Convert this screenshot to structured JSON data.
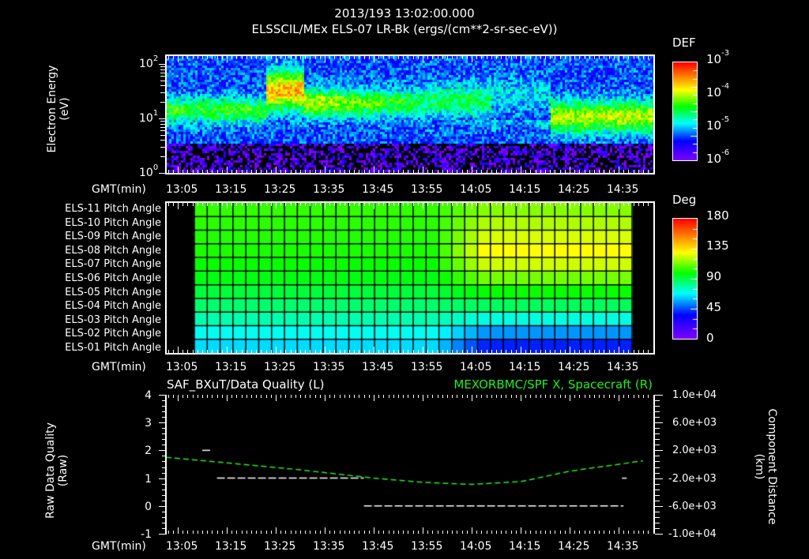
{
  "header": {
    "timestamp": "2013/193 13:02:00.000",
    "subtitle": "ELSSCIL/MEx ELS-07 LR-Bk  (ergs/(cm**2-sr-sec-eV))"
  },
  "time_axis": {
    "label": "GMT(min)",
    "ticks": [
      "13:05",
      "13:15",
      "13:25",
      "13:35",
      "13:45",
      "13:55",
      "14:05",
      "14:15",
      "14:25",
      "14:35"
    ]
  },
  "panel1": {
    "ylabel_line1": "Electron Energy",
    "ylabel_line2": "(eV)",
    "yticks": [
      {
        "base": "10",
        "exp": "2"
      },
      {
        "base": "10",
        "exp": "1"
      },
      {
        "base": "10",
        "exp": "0"
      }
    ],
    "colorbar": {
      "title": "DEF",
      "labels": [
        {
          "base": "10",
          "exp": "-3"
        },
        {
          "base": "10",
          "exp": "-4"
        },
        {
          "base": "10",
          "exp": "-5"
        },
        {
          "base": "10",
          "exp": "-6"
        }
      ]
    }
  },
  "panel2": {
    "row_labels": [
      "ELS-11 Pitch Angle",
      "ELS-10 Pitch Angle",
      "ELS-09 Pitch Angle",
      "ELS-08 Pitch Angle",
      "ELS-07 Pitch Angle",
      "ELS-06 Pitch Angle",
      "ELS-05 Pitch Angle",
      "ELS-04 Pitch Angle",
      "ELS-03 Pitch Angle",
      "ELS-02 Pitch Angle",
      "ELS-01 Pitch Angle"
    ],
    "colorbar": {
      "title": "Deg",
      "labels": [
        "180",
        "135",
        "90",
        "45",
        "0"
      ]
    }
  },
  "panel3": {
    "left_title": "SAF_BXuT/Data Quality (L)",
    "right_title": "MEXORBMC/SPF X, Spacecraft (R)",
    "ylabel_left_line1": "Raw Data Quality",
    "ylabel_left_line2": "(Raw)",
    "yticks_left": [
      "4",
      "3",
      "2",
      "1",
      "0",
      "-1"
    ],
    "yticks_right": [
      "1.0e+04",
      "6.0e+03",
      "2.0e+03",
      "-2.0e+03",
      "-6.0e+03",
      "-1.0e+04"
    ],
    "ylabel_right_line1": "Component Distance",
    "ylabel_right_line2": "(km)"
  },
  "colors": {
    "background": "#000000",
    "axis": "#ffffff",
    "position_trace": "#22ee22",
    "quality_trace": "#ffffff"
  },
  "chart_data": [
    {
      "type": "heatmap",
      "title": "ELSSCIL/MEx ELS-07 LR-Bk (ergs/(cm**2-sr-sec-eV))",
      "xlabel": "GMT(min)",
      "ylabel": "Electron Energy (eV)",
      "x_ticks": [
        "13:05",
        "13:15",
        "13:25",
        "13:35",
        "13:45",
        "13:55",
        "14:05",
        "14:15",
        "14:25",
        "14:35"
      ],
      "y_scale": "log",
      "ylim": [
        1,
        150
      ],
      "colorbar": {
        "label": "DEF",
        "scale": "log",
        "range": [
          1e-06,
          0.001
        ]
      },
      "features": [
        {
          "time": "13:02-13:22",
          "energy_band_eV": [
            8,
            25
          ],
          "level": "~3e-5"
        },
        {
          "time": "13:22-13:30",
          "energy_band_eV": [
            15,
            80
          ],
          "level": "~5e-4 (peak)"
        },
        {
          "time": "13:30-13:55",
          "energy_band_eV": [
            10,
            40
          ],
          "level": "~1e-4 decreasing"
        },
        {
          "time": "13:55-14:08",
          "energy_band_eV": [
            10,
            60
          ],
          "level": "~3e-5"
        },
        {
          "time": "14:08-14:20",
          "energy_band_eV": [
            3,
            10
          ],
          "level": "low/background"
        },
        {
          "time": "14:22-14:40",
          "energy_band_eV": [
            4,
            30
          ],
          "level": "~1e-4"
        }
      ]
    },
    {
      "type": "heatmap",
      "title": "ELS Pitch Angle",
      "xlabel": "GMT(min)",
      "rows": [
        "ELS-11",
        "ELS-10",
        "ELS-09",
        "ELS-08",
        "ELS-07",
        "ELS-06",
        "ELS-05",
        "ELS-04",
        "ELS-03",
        "ELS-02",
        "ELS-01"
      ],
      "colorbar": {
        "label": "Deg",
        "range": [
          0,
          180
        ],
        "ticks": [
          0,
          45,
          90,
          135,
          180
        ]
      },
      "data_time_range": [
        "13:08",
        "14:36"
      ],
      "values_deg_start": [
        105,
        104,
        103,
        102,
        100,
        97,
        92,
        86,
        78,
        70,
        64
      ],
      "values_deg_end": [
        115,
        120,
        125,
        130,
        124,
        113,
        100,
        88,
        72,
        55,
        40
      ]
    },
    {
      "type": "line",
      "title": "SAF_BXuT/Data Quality (L) ; MEXORBMC/SPF X, Spacecraft (R)",
      "xlabel": "GMT(min)",
      "ylabel": "Raw Data Quality (Raw)",
      "ylim": [
        -1,
        4
      ],
      "y2label": "Component Distance (km)",
      "y2lim": [
        -10000,
        10000
      ],
      "series": [
        {
          "name": "Data Quality (L)",
          "axis": "left",
          "style": "dashed white",
          "points": [
            [
              "13:10",
              2
            ],
            [
              "13:12",
              2
            ],
            [
              "13:13",
              1
            ],
            [
              "13:43",
              1
            ],
            [
              "13:43",
              0
            ],
            [
              "14:36",
              0
            ],
            [
              "14:36",
              1
            ]
          ]
        },
        {
          "name": "SPF X, Spacecraft (R)",
          "axis": "right",
          "style": "dashed green",
          "points": [
            [
              "13:02",
              1000
            ],
            [
              "13:15",
              200
            ],
            [
              "13:30",
              -800
            ],
            [
              "13:45",
              -2000
            ],
            [
              "13:55",
              -2600
            ],
            [
              "14:05",
              -2900
            ],
            [
              "14:15",
              -2500
            ],
            [
              "14:25",
              -1000
            ],
            [
              "14:40",
              500
            ]
          ]
        }
      ]
    }
  ]
}
